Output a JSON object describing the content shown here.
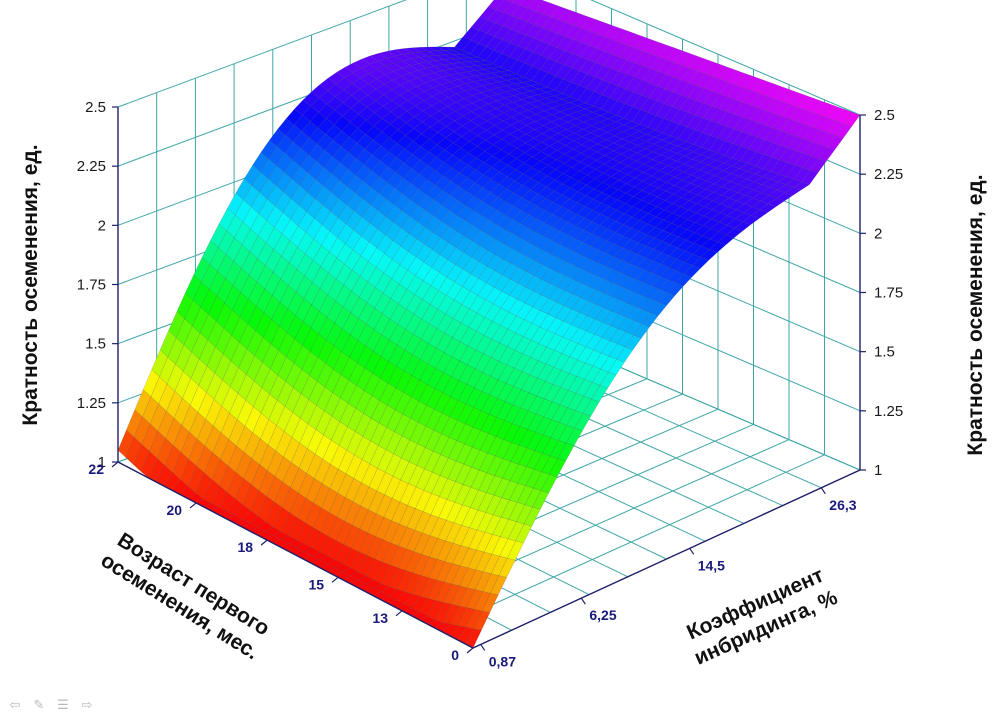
{
  "chart_data": {
    "type": "surface3d",
    "title": "",
    "z_axis_title_left": "Кратность осеменения, ед.",
    "z_axis_title_right": "Кратность осеменения, ед.",
    "x_axis_title_line1": "Возраст первого",
    "x_axis_title_line2": "осеменения, мес.",
    "y_axis_title_line1": "Коэффициент",
    "y_axis_title_line2": "инбридинга, %",
    "zlim": [
      1,
      2.5
    ],
    "z_ticks": [
      "1",
      "1.25",
      "1.5",
      "1.75",
      "2",
      "2.25",
      "2.5"
    ],
    "x_ticks": [
      "0",
      "13",
      "15",
      "18",
      "20",
      "22"
    ],
    "y_ticks": [
      "0,87",
      "6,25",
      "14,5",
      "26,3"
    ],
    "x_range": [
      0,
      22
    ],
    "y_range": [
      0.87,
      30
    ],
    "surface_corners": {
      "age22_inb0.87": 1.05,
      "age0_inb0.87": 1.0,
      "age22_inb30": 2.4,
      "age0_inb30": 2.5
    },
    "colormap": [
      "red",
      "orange",
      "yellow",
      "green",
      "cyan",
      "blue",
      "magenta"
    ],
    "grid": true
  },
  "nav": {
    "icons": [
      "arrow-left-icon",
      "pen-icon",
      "menu-icon",
      "arrow-right-icon"
    ],
    "glyphs": [
      "⇦",
      "✎",
      "☰",
      "⇨"
    ]
  }
}
